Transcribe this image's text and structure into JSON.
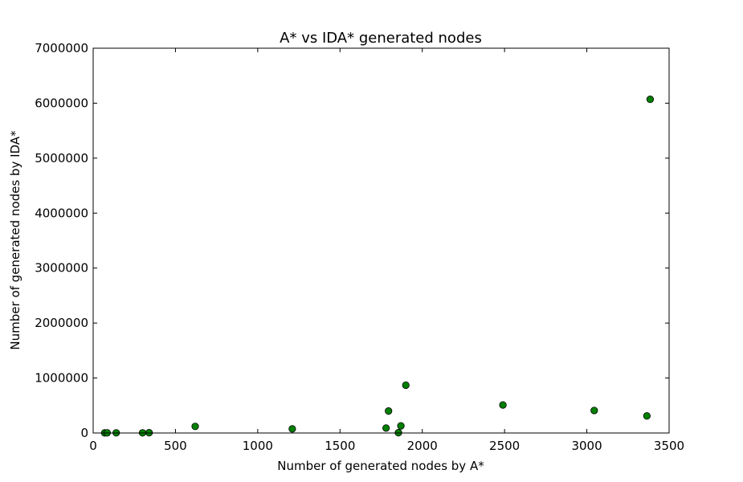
{
  "chart_data": {
    "type": "scatter",
    "title": "A* vs IDA* generated nodes",
    "xlabel": "Number of generated nodes by A*",
    "ylabel": "Number of generated nodes by IDA*",
    "xlim": [
      0,
      3500
    ],
    "ylim": [
      0,
      7000000
    ],
    "xticks": [
      0,
      500,
      1000,
      1500,
      2000,
      2500,
      3000,
      3500
    ],
    "yticks": [
      0,
      1000000,
      2000000,
      3000000,
      4000000,
      5000000,
      6000000,
      7000000
    ],
    "xtick_labels": [
      "0",
      "500",
      "1000",
      "1500",
      "2000",
      "2500",
      "3000",
      "3500"
    ],
    "ytick_labels": [
      "0",
      "1000000",
      "2000000",
      "3000000",
      "4000000",
      "5000000",
      "6000000",
      "7000000"
    ],
    "grid": false,
    "marker_color": "#008000",
    "points": [
      {
        "x": 70,
        "y": 2000
      },
      {
        "x": 85,
        "y": 3000
      },
      {
        "x": 140,
        "y": 3000
      },
      {
        "x": 300,
        "y": 3000
      },
      {
        "x": 340,
        "y": 5000
      },
      {
        "x": 620,
        "y": 120000
      },
      {
        "x": 1210,
        "y": 75000
      },
      {
        "x": 1780,
        "y": 90000
      },
      {
        "x": 1795,
        "y": 400000
      },
      {
        "x": 1855,
        "y": 5000
      },
      {
        "x": 1870,
        "y": 130000
      },
      {
        "x": 1900,
        "y": 870000
      },
      {
        "x": 2490,
        "y": 510000
      },
      {
        "x": 3045,
        "y": 410000
      },
      {
        "x": 3365,
        "y": 310000
      },
      {
        "x": 3385,
        "y": 6070000
      }
    ]
  }
}
